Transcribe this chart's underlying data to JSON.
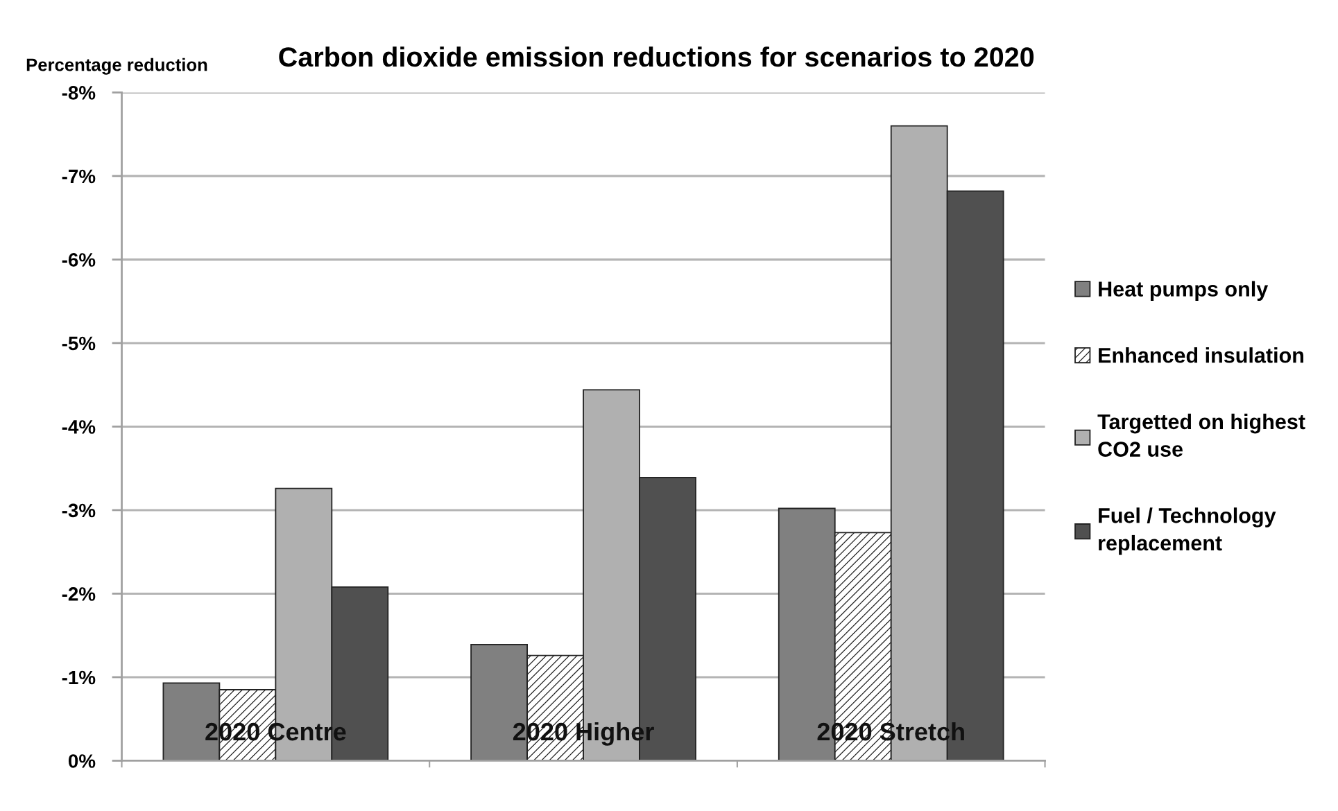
{
  "chart_data": {
    "type": "bar",
    "title": "Carbon dioxide emission reductions for scenarios to 2020",
    "ylabel": "Percentage reduction",
    "categories": [
      "2020 Centre",
      "2020 Higher",
      "2020 Stretch"
    ],
    "series": [
      {
        "name": "Heat pumps only",
        "color": "#808080",
        "values": [
          -0.93,
          -1.39,
          -3.02
        ]
      },
      {
        "name": "Enhanced insulation",
        "color": "#222222",
        "values": [
          -0.85,
          -1.26,
          -2.73
        ]
      },
      {
        "name": "Targetted on highest\nCO2 use",
        "color": "#b0b0b0",
        "values": [
          -3.26,
          -4.44,
          -7.6
        ]
      },
      {
        "name": "Fuel / Technology\nreplacement",
        "color": "#505050",
        "values": [
          -2.08,
          -3.39,
          -6.82
        ]
      }
    ],
    "ylim": [
      0,
      -8
    ],
    "yticks": [
      {
        "value": 0,
        "label": "0%"
      },
      {
        "value": -1,
        "label": "-1%"
      },
      {
        "value": -2,
        "label": "-2%"
      },
      {
        "value": -3,
        "label": "-3%"
      },
      {
        "value": -4,
        "label": "-4%"
      },
      {
        "value": -5,
        "label": "-5%"
      },
      {
        "value": -6,
        "label": "-6%"
      },
      {
        "value": -7,
        "label": "-7%"
      },
      {
        "value": -8,
        "label": "-8%"
      }
    ],
    "grid": "y",
    "legend": "right"
  }
}
